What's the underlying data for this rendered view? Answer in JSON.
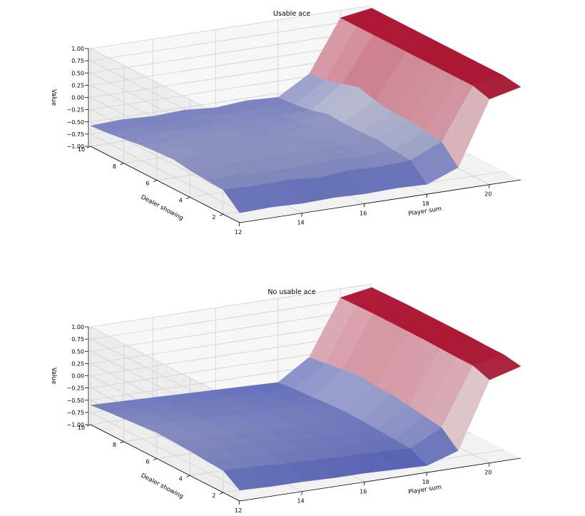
{
  "figure": {
    "background": "#ffffff"
  },
  "colormap": {
    "name": "coolwarm",
    "low": "#3b4cc0",
    "mid": "#dddddd",
    "high": "#b40426"
  },
  "chart_data": [
    {
      "type": "surface",
      "title": "Usable ace",
      "xlabel": "Player sum",
      "ylabel": "Dealer showing",
      "zlabel": "Value",
      "x_ticks": [
        12,
        14,
        16,
        18,
        20
      ],
      "y_ticks": [
        2,
        4,
        6,
        8,
        10
      ],
      "z_ticks": [
        "1.00",
        "0.75",
        "0.50",
        "0.25",
        "0.00",
        "−0.25",
        "−0.50",
        "−0.75",
        "−1.00"
      ],
      "xlim": [
        12,
        21
      ],
      "ylim": [
        1,
        10
      ],
      "zlim": [
        -1,
        1
      ],
      "x": [
        12,
        13,
        14,
        15,
        16,
        17,
        18,
        19,
        20,
        21
      ],
      "y": [
        1,
        2,
        3,
        4,
        5,
        6,
        7,
        8,
        9,
        10
      ],
      "grid": true,
      "z": [
        [
          -0.8,
          -0.78,
          -0.8,
          -0.78,
          -0.8,
          -0.78,
          -0.8,
          -0.55,
          0.75,
          0.9
        ],
        [
          -0.5,
          -0.52,
          -0.5,
          -0.55,
          -0.5,
          -0.52,
          -0.48,
          -0.2,
          0.85,
          0.95
        ],
        [
          -0.48,
          -0.45,
          -0.5,
          -0.48,
          -0.45,
          -0.5,
          -0.45,
          -0.15,
          0.85,
          0.95
        ],
        [
          -0.45,
          -0.42,
          -0.45,
          -0.4,
          -0.45,
          -0.42,
          -0.4,
          -0.1,
          0.85,
          0.95
        ],
        [
          -0.4,
          -0.45,
          -0.42,
          -0.45,
          -0.4,
          -0.45,
          -0.42,
          -0.1,
          0.85,
          0.95
        ],
        [
          -0.42,
          -0.4,
          -0.45,
          -0.42,
          -0.45,
          -0.4,
          -0.42,
          -0.05,
          0.85,
          0.95
        ],
        [
          -0.45,
          -0.48,
          -0.42,
          -0.45,
          -0.48,
          -0.45,
          -0.4,
          0.05,
          0.85,
          0.95
        ],
        [
          -0.5,
          -0.48,
          -0.5,
          -0.52,
          -0.48,
          -0.5,
          -0.5,
          -0.05,
          0.85,
          0.95
        ],
        [
          -0.55,
          -0.52,
          -0.55,
          -0.5,
          -0.55,
          -0.52,
          -0.55,
          -0.15,
          0.85,
          0.95
        ],
        [
          -0.58,
          -0.55,
          -0.58,
          -0.55,
          -0.6,
          -0.55,
          -0.58,
          -0.2,
          0.85,
          0.95
        ]
      ]
    },
    {
      "type": "surface",
      "title": "No usable ace",
      "xlabel": "Player sum",
      "ylabel": "Dealer showing",
      "zlabel": "Value",
      "x_ticks": [
        12,
        14,
        16,
        18,
        20
      ],
      "y_ticks": [
        2,
        4,
        6,
        8,
        10
      ],
      "z_ticks": [
        "1.00",
        "0.75",
        "0.50",
        "0.25",
        "0.00",
        "−0.25",
        "−0.50",
        "−0.75",
        "−1.00"
      ],
      "xlim": [
        12,
        21
      ],
      "ylim": [
        1,
        10
      ],
      "zlim": [
        -1,
        1
      ],
      "x": [
        12,
        13,
        14,
        15,
        16,
        17,
        18,
        19,
        20,
        21
      ],
      "y": [
        1,
        2,
        3,
        4,
        5,
        6,
        7,
        8,
        9,
        10
      ],
      "grid": true,
      "z": [
        [
          -0.78,
          -0.8,
          -0.8,
          -0.82,
          -0.82,
          -0.84,
          -0.86,
          -0.65,
          0.7,
          0.88
        ],
        [
          -0.55,
          -0.57,
          -0.6,
          -0.62,
          -0.64,
          -0.66,
          -0.68,
          -0.35,
          0.82,
          0.94
        ],
        [
          -0.53,
          -0.55,
          -0.58,
          -0.6,
          -0.62,
          -0.64,
          -0.66,
          -0.3,
          0.82,
          0.94
        ],
        [
          -0.5,
          -0.53,
          -0.56,
          -0.58,
          -0.6,
          -0.62,
          -0.64,
          -0.25,
          0.83,
          0.95
        ],
        [
          -0.48,
          -0.5,
          -0.53,
          -0.55,
          -0.58,
          -0.6,
          -0.62,
          -0.2,
          0.84,
          0.95
        ],
        [
          -0.47,
          -0.5,
          -0.52,
          -0.55,
          -0.57,
          -0.59,
          -0.61,
          -0.2,
          0.84,
          0.95
        ],
        [
          -0.5,
          -0.52,
          -0.55,
          -0.57,
          -0.59,
          -0.61,
          -0.63,
          -0.15,
          0.84,
          0.95
        ],
        [
          -0.53,
          -0.55,
          -0.58,
          -0.6,
          -0.62,
          -0.64,
          -0.66,
          -0.2,
          0.84,
          0.95
        ],
        [
          -0.56,
          -0.58,
          -0.6,
          -0.62,
          -0.64,
          -0.66,
          -0.68,
          -0.25,
          0.83,
          0.94
        ],
        [
          -0.6,
          -0.62,
          -0.64,
          -0.66,
          -0.68,
          -0.7,
          -0.72,
          -0.3,
          0.82,
          0.93
        ]
      ]
    }
  ]
}
